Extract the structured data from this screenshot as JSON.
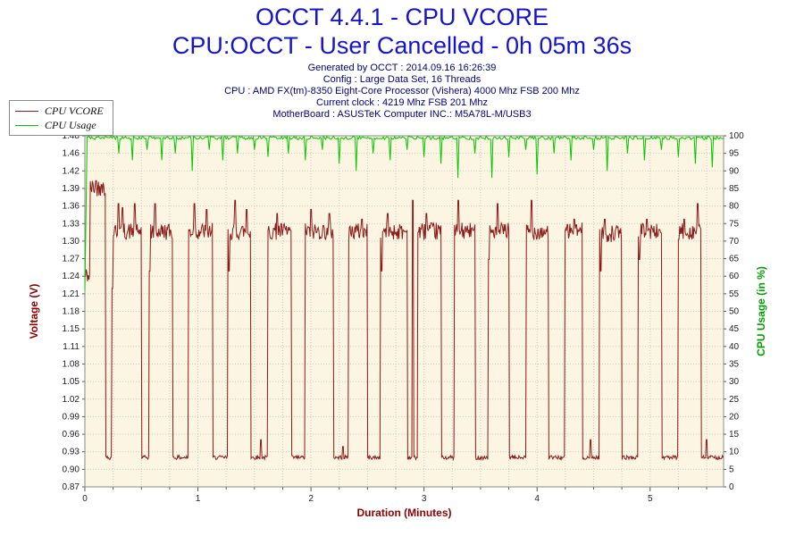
{
  "header": {
    "title_line1": "OCCT 4.4.1 - CPU VCORE",
    "title_line2": "CPU:OCCT - User Cancelled - 0h 05m 36s",
    "info_lines": [
      "Generated by OCCT : 2014.09.16 16:26:39",
      "Config : Large Data Set, 16 Threads",
      "CPU : AMD FX(tm)-8350 Eight-Core Processor (Vishera) 4000 Mhz FSB 200 Mhz",
      "Current clock : 4219 Mhz FSB 201 Mhz",
      "MotherBoard : ASUSTeK Computer INC.: M5A78L-M/USB3"
    ]
  },
  "legend": {
    "items": [
      {
        "label": "CPU VCORE",
        "color": "#8B1A1A"
      },
      {
        "label": "CPU Usage",
        "color": "#00C800"
      }
    ]
  },
  "chart_data": {
    "type": "line",
    "title": "OCCT 4.4.1 - CPU VCORE",
    "plot_bg": "#FCF5E1",
    "grid_color": "#C9C9C9",
    "x_axis": {
      "label": "Duration (Minutes)",
      "color": "#8B0000",
      "min": 0,
      "max": 5.65,
      "ticks": [
        0,
        1,
        2,
        3,
        4,
        5
      ],
      "minor_step": 0.25
    },
    "y_left": {
      "label": "Voltage (V)",
      "color": "#8B0000",
      "min": 0.87,
      "max": 1.48,
      "tick_labels": [
        "0.87",
        "0.90",
        "0.93",
        "0.96",
        "0.99",
        "1.02",
        "1.05",
        "1.08",
        "1.11",
        "1.15",
        "1.18",
        "1.21",
        "1.24",
        "1.27",
        "1.30",
        "1.33",
        "1.36",
        "1.39",
        "1.42",
        "1.46",
        "1.48"
      ]
    },
    "y_right": {
      "label": "CPU Usage (in %)",
      "color": "#00A000",
      "min": 0,
      "max": 100,
      "tick_step": 5
    },
    "series": [
      {
        "name": "CPU VCORE",
        "axis": "left",
        "color": "#8B1A1A",
        "low_level": 0.921,
        "bursts": [
          [
            0.0,
            0.045,
            1.235
          ],
          [
            0.045,
            0.185,
            1.388
          ],
          [
            0.235,
            0.5,
            1.312
          ],
          [
            0.565,
            0.775,
            1.312
          ],
          [
            0.915,
            1.13,
            1.312
          ],
          [
            1.265,
            1.47,
            1.312
          ],
          [
            1.615,
            1.83,
            1.312
          ],
          [
            1.95,
            2.2,
            1.312
          ],
          [
            2.33,
            2.5,
            1.312
          ],
          [
            2.615,
            2.85,
            1.312
          ],
          [
            2.945,
            3.15,
            1.312
          ],
          [
            3.265,
            3.45,
            1.312
          ],
          [
            3.565,
            3.75,
            1.312
          ],
          [
            3.9,
            4.1,
            1.312
          ],
          [
            4.245,
            4.4,
            1.312
          ],
          [
            4.55,
            4.75,
            1.308
          ],
          [
            4.895,
            5.1,
            1.312
          ],
          [
            5.245,
            5.45,
            1.312
          ]
        ],
        "spikes": [
          [
            0.1,
            1.402
          ],
          [
            0.145,
            1.395
          ],
          [
            0.3,
            1.362
          ],
          [
            0.335,
            1.355
          ],
          [
            0.44,
            1.362
          ],
          [
            0.62,
            1.362
          ],
          [
            0.97,
            1.362
          ],
          [
            1.08,
            1.352
          ],
          [
            1.33,
            1.368
          ],
          [
            1.43,
            1.352
          ],
          [
            1.7,
            1.345
          ],
          [
            2.0,
            1.352
          ],
          [
            2.16,
            1.345
          ],
          [
            2.45,
            1.335
          ],
          [
            2.68,
            1.345
          ],
          [
            2.9,
            1.368
          ],
          [
            3.02,
            1.345
          ],
          [
            3.3,
            1.368
          ],
          [
            3.65,
            1.362
          ],
          [
            3.95,
            1.368
          ],
          [
            4.33,
            1.335
          ],
          [
            4.6,
            1.335
          ],
          [
            4.97,
            1.335
          ],
          [
            5.3,
            1.335
          ],
          [
            5.42,
            1.362
          ]
        ],
        "dips": [
          [
            0.245,
            1.215
          ],
          [
            0.575,
            1.245
          ],
          [
            1.275,
            1.245
          ],
          [
            2.625,
            1.245
          ],
          [
            3.575,
            1.265
          ],
          [
            4.565,
            1.245
          ],
          [
            4.905,
            1.265
          ],
          [
            5.255,
            1.3
          ]
        ],
        "low_spikes": [
          [
            1.555,
            0.952
          ],
          [
            2.285,
            0.94
          ],
          [
            4.47,
            0.952
          ],
          [
            5.5,
            0.952
          ]
        ]
      },
      {
        "name": "CPU Usage",
        "axis": "right",
        "color": "#00C800",
        "base": 99.4,
        "start_value": 56,
        "dips": [
          [
            0.3,
            95
          ],
          [
            0.42,
            93
          ],
          [
            0.55,
            96
          ],
          [
            0.68,
            93
          ],
          [
            0.8,
            95
          ],
          [
            0.95,
            90
          ],
          [
            1.1,
            96
          ],
          [
            1.22,
            93
          ],
          [
            1.35,
            95
          ],
          [
            1.5,
            96
          ],
          [
            1.62,
            94
          ],
          [
            1.8,
            95
          ],
          [
            1.95,
            93
          ],
          [
            2.1,
            96
          ],
          [
            2.25,
            92
          ],
          [
            2.4,
            90
          ],
          [
            2.55,
            95
          ],
          [
            2.7,
            93
          ],
          [
            2.85,
            96
          ],
          [
            3.0,
            94
          ],
          [
            3.15,
            92
          ],
          [
            3.3,
            88
          ],
          [
            3.45,
            95
          ],
          [
            3.6,
            88
          ],
          [
            3.75,
            94
          ],
          [
            3.9,
            96
          ],
          [
            4.0,
            89
          ],
          [
            4.15,
            95
          ],
          [
            4.3,
            93
          ],
          [
            4.5,
            96
          ],
          [
            4.62,
            90
          ],
          [
            4.8,
            95
          ],
          [
            4.95,
            93
          ],
          [
            5.1,
            96
          ],
          [
            5.25,
            94
          ],
          [
            5.4,
            92
          ],
          [
            5.55,
            91
          ]
        ]
      }
    ]
  }
}
